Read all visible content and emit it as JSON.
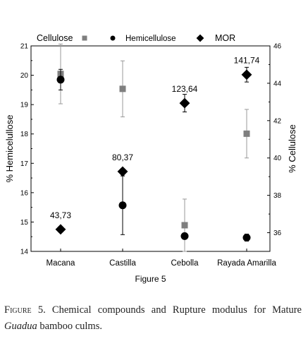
{
  "chart_data": {
    "type": "scatter",
    "categories": [
      "Macana",
      "Castilla",
      "Cebolla",
      "Rayada Amarilla"
    ],
    "legend": [
      "Cellulose",
      "Hemicellulose",
      "MOR"
    ],
    "ylabel_left": "% Hemicelullose",
    "ylabel_right": "% Cellulose",
    "xlabel": "Figure 5",
    "left_axis": {
      "ylim": [
        14,
        21
      ],
      "ticks": [
        "14",
        "15",
        "16",
        "17",
        "18",
        "19",
        "20",
        "21"
      ]
    },
    "right_axis": {
      "ylim": [
        35,
        46
      ],
      "ticks": [
        "36",
        "38",
        "40",
        "42",
        "44",
        "46"
      ]
    },
    "series": [
      {
        "name": "Cellulose",
        "axis": "right",
        "marker": "square",
        "color": "#7f7f7f",
        "values": [
          44.5,
          43.7,
          36.4,
          41.3
        ],
        "error": [
          1.6,
          1.5,
          1.4,
          1.3
        ]
      },
      {
        "name": "Hemicellulose",
        "axis": "left",
        "marker": "circle",
        "color": "#000000",
        "values": [
          19.85,
          15.57,
          14.52,
          14.47
        ],
        "error": [
          0.35,
          1.0,
          0.08,
          0.12
        ]
      },
      {
        "name": "MOR",
        "axis": "left",
        "marker": "diamond",
        "color": "#000000",
        "values": [
          14.75,
          16.72,
          19.05,
          20.02
        ],
        "error": [
          0,
          0,
          0.3,
          0.25
        ],
        "data_labels": [
          "43,73",
          "80,37",
          "123,64",
          "141,74"
        ]
      }
    ],
    "grid": false,
    "legend_position": "top"
  },
  "caption": {
    "lead": "Figure",
    "text": " 5. Chemical compounds and Rupture modulus for Mature ",
    "italic": "Guadua",
    "tail": " bamboo culms."
  }
}
